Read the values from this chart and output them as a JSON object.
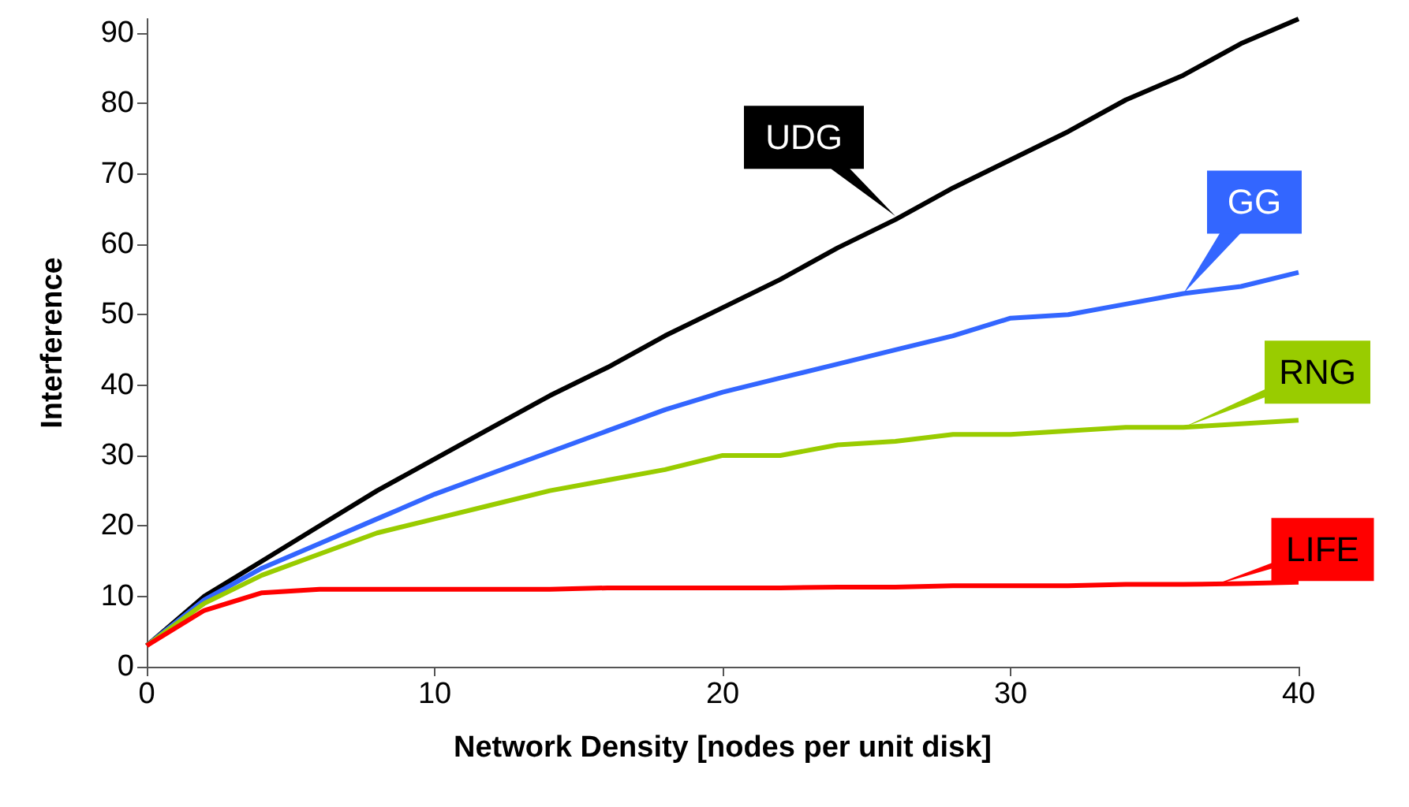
{
  "chart_data": {
    "type": "line",
    "xlabel": "Network Density [nodes per unit disk]",
    "ylabel": "Interference",
    "x": [
      0,
      2,
      4,
      6,
      8,
      10,
      12,
      14,
      16,
      18,
      20,
      22,
      24,
      26,
      28,
      30,
      32,
      34,
      36,
      38,
      40
    ],
    "series": [
      {
        "color": "#000000",
        "values": [
          3,
          10,
          15,
          20,
          25,
          29.5,
          34,
          38.5,
          42.5,
          47,
          51,
          55,
          59.5,
          63.5,
          68,
          72,
          76,
          80.5,
          84,
          88.5,
          92
        ]
      },
      {
        "color": "#3366ff",
        "values": [
          3,
          9.5,
          14,
          17.5,
          21,
          24.5,
          27.5,
          30.5,
          33.5,
          36.5,
          39,
          41,
          43,
          45,
          47,
          49.5,
          50,
          51.5,
          53,
          54,
          56
        ]
      },
      {
        "color": "#99cc00",
        "values": [
          3,
          9,
          13,
          16,
          19,
          21,
          23,
          25,
          26.5,
          28,
          30,
          30,
          31.5,
          32,
          33,
          33,
          33.5,
          34,
          34,
          34.5,
          35
        ]
      },
      {
        "color": "#ff0000",
        "values": [
          3,
          8,
          10.5,
          11,
          11,
          11,
          11,
          11,
          11.2,
          11.2,
          11.2,
          11.2,
          11.3,
          11.3,
          11.5,
          11.5,
          11.5,
          11.7,
          11.7,
          11.8,
          12
        ]
      }
    ],
    "annotations": [
      {
        "text": "UDG",
        "x": 26,
        "y": 64
      },
      {
        "text": "GG",
        "x": 36,
        "y": 53
      },
      {
        "text": "RNG",
        "x": 36,
        "y": 34
      },
      {
        "text": "LIFE",
        "x": 37,
        "y": 11.5
      }
    ],
    "xlim": [
      0,
      40
    ],
    "xticks": [
      0,
      10,
      20,
      30,
      40
    ],
    "ylim": [
      0,
      92
    ],
    "yticks": [
      0,
      10,
      20,
      30,
      40,
      50,
      60,
      70,
      80,
      90
    ],
    "grid": false,
    "marker": "none",
    "line_style": "solid"
  }
}
